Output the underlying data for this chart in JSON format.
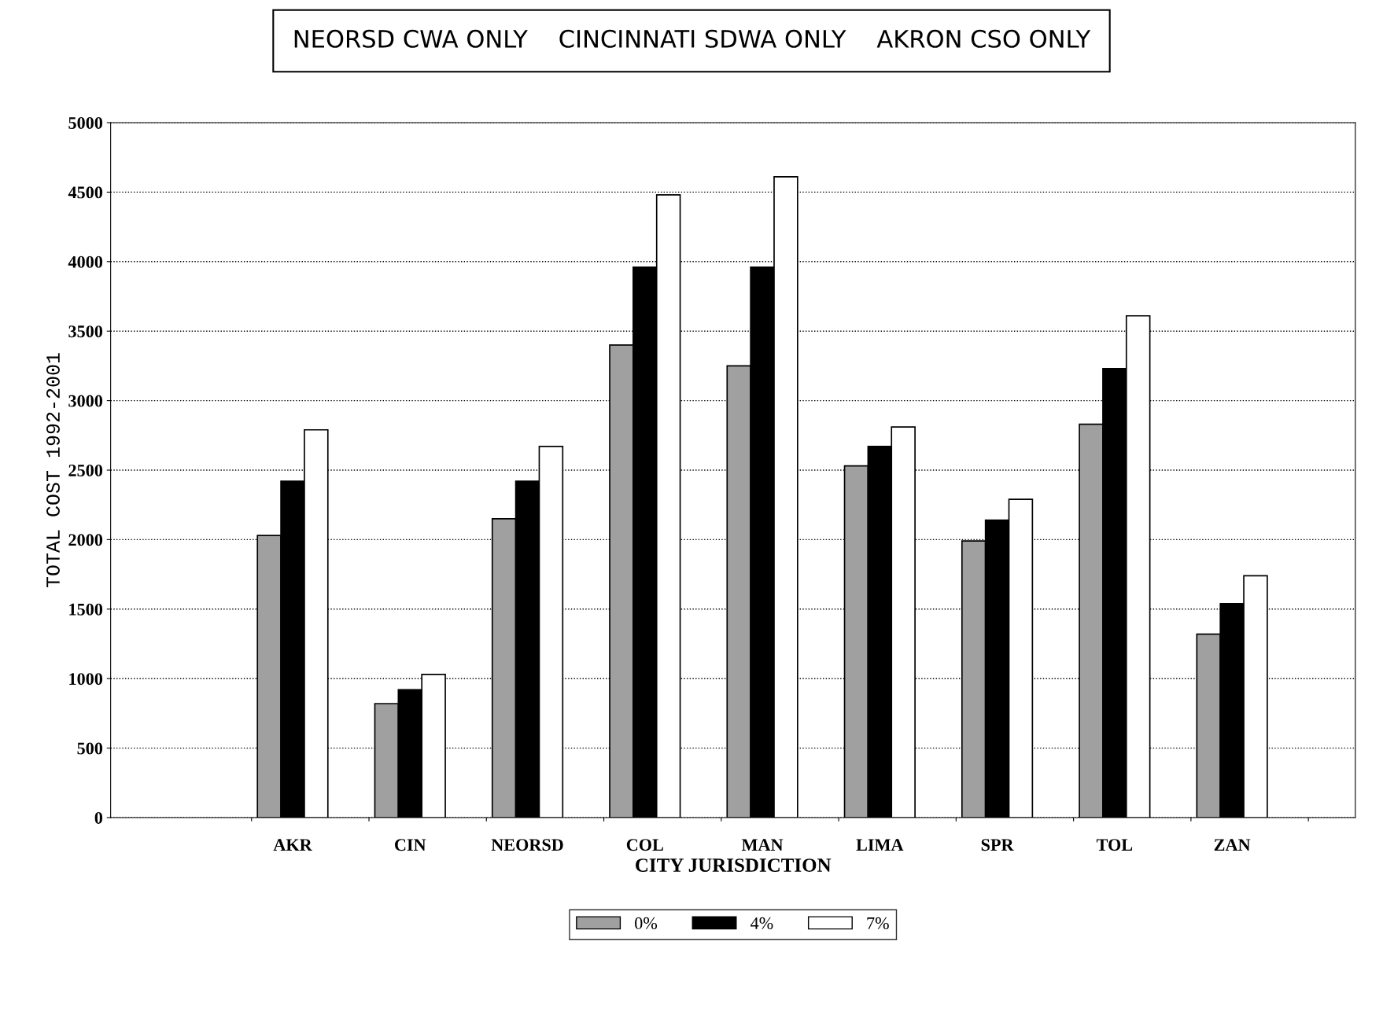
{
  "chart_data": {
    "type": "bar",
    "title": "NEORSD CWA ONLY    CINCINNATI SDWA ONLY    AKRON CSO ONLY",
    "xlabel": "CITY JURISDICTION",
    "ylabel": "TOTAL COST 1992-2001",
    "categories": [
      "AKR",
      "CIN",
      "NEORSD",
      "COL",
      "MAN",
      "LIMA",
      "SPR",
      "TOL",
      "ZAN"
    ],
    "series": [
      {
        "name": "0%",
        "color": "#a0a0a0",
        "values": [
          2030,
          820,
          2150,
          3400,
          3250,
          2530,
          1990,
          2830,
          1320
        ]
      },
      {
        "name": "4%",
        "color": "#000000",
        "values": [
          2420,
          920,
          2420,
          3960,
          3960,
          2670,
          2140,
          3230,
          1540
        ]
      },
      {
        "name": "7%",
        "color": "#ffffff",
        "values": [
          2790,
          1030,
          2670,
          4480,
          4610,
          2810,
          2290,
          3610,
          1740
        ]
      }
    ],
    "ylim": [
      0,
      5000
    ],
    "yticks": [
      0,
      500,
      1000,
      1500,
      2000,
      2500,
      3000,
      3500,
      4000,
      4500,
      5000
    ],
    "grid": "y",
    "legend": "bottom"
  }
}
